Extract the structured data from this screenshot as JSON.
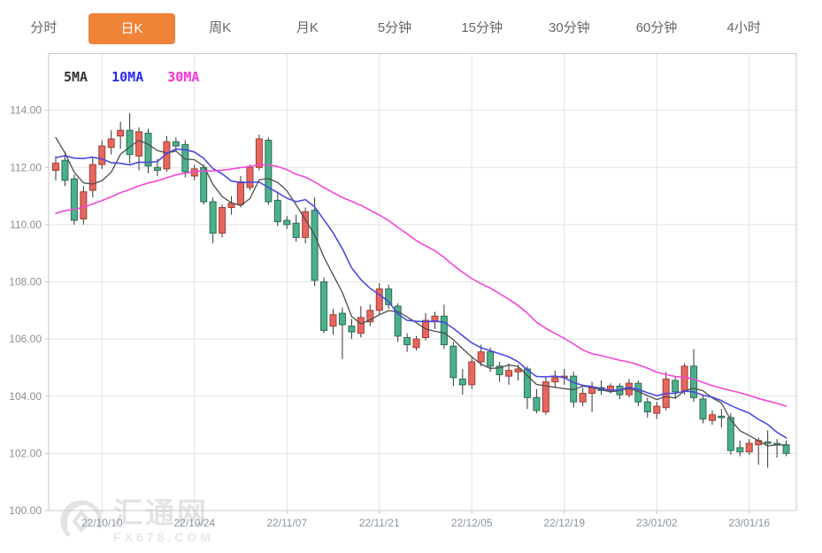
{
  "tabs": {
    "items": [
      {
        "label": "分时",
        "active": false
      },
      {
        "label": "日K",
        "active": true
      },
      {
        "label": "周K",
        "active": false
      },
      {
        "label": "月K",
        "active": false
      },
      {
        "label": "5分钟",
        "active": false
      },
      {
        "label": "15分钟",
        "active": false
      },
      {
        "label": "30分钟",
        "active": false
      },
      {
        "label": "60分钟",
        "active": false
      },
      {
        "label": "4小时",
        "active": false
      }
    ]
  },
  "legend": {
    "items": [
      {
        "label": "5MA",
        "color": "#333333"
      },
      {
        "label": "10MA",
        "color": "#2a2aee"
      },
      {
        "label": "30MA",
        "color": "#fb30d8"
      }
    ]
  },
  "watermark": {
    "title": "汇通网",
    "subtitle": "FX678.COM"
  },
  "colors": {
    "accent_orange": "#ef8338",
    "up_fill": "#e8665e",
    "up_stroke": "#9c4038",
    "down_fill": "#4bb18b",
    "down_stroke": "#2e6b52",
    "wick": "#333333",
    "ma5": "#4d4d4d",
    "ma10": "#4a4ae0",
    "ma30": "#f247d8",
    "grid": "#e3e3e3",
    "border": "#c9c9c9",
    "y_text": "#8e8e8e",
    "x_text": "#8b95a0",
    "watermark": "#e3e3e3"
  },
  "chart_data": {
    "type": "candlestick",
    "title": "",
    "ylim": [
      100,
      116
    ],
    "y_ticks": [
      114,
      112,
      110,
      108,
      106,
      104,
      102,
      100
    ],
    "y_tick_labels": [
      "114.00",
      "112.00",
      "110.00",
      "108.00",
      "106.00",
      "104.00",
      "102.00",
      "100.00"
    ],
    "x_axis_labels": [
      {
        "index": 5,
        "label": "22/10/10"
      },
      {
        "index": 15,
        "label": "22/10/24"
      },
      {
        "index": 25,
        "label": "22/11/07"
      },
      {
        "index": 35,
        "label": "22/11/21"
      },
      {
        "index": 45,
        "label": "22/12/05"
      },
      {
        "index": 55,
        "label": "22/12/19"
      },
      {
        "index": 65,
        "label": "23/01/02"
      },
      {
        "index": 75,
        "label": "23/01/16"
      }
    ],
    "ma_series": [
      {
        "name": "5MA",
        "window": 5,
        "color": "#4d4d4d",
        "width": 1.3
      },
      {
        "name": "10MA",
        "window": 10,
        "color": "#4a4ae0",
        "width": 1.6
      },
      {
        "name": "30MA",
        "window": 30,
        "color": "#f247d8",
        "width": 1.6
      }
    ],
    "ma_prehistory_closes": [
      108.6,
      108.8,
      108.9,
      108.8,
      109.0,
      109.2,
      109.0,
      109.1,
      109.3,
      109.1,
      109.6,
      109.7,
      109.8,
      110.0,
      110.3,
      110.1,
      109.8,
      109.6,
      109.7,
      109.9,
      110.9,
      111.0,
      111.3,
      111.6,
      113.4,
      114.3,
      113.5,
      113.0,
      112.3
    ],
    "candles": [
      [
        111.9,
        112.4,
        111.55,
        112.15
      ],
      [
        112.25,
        112.55,
        111.35,
        111.55
      ],
      [
        111.6,
        111.75,
        110.0,
        110.15
      ],
      [
        110.2,
        111.35,
        110.0,
        111.15
      ],
      [
        111.2,
        112.35,
        110.95,
        112.1
      ],
      [
        112.1,
        112.95,
        111.95,
        112.75
      ],
      [
        112.7,
        113.3,
        112.45,
        113.0
      ],
      [
        113.1,
        113.6,
        112.65,
        113.3
      ],
      [
        113.3,
        113.9,
        112.15,
        112.45
      ],
      [
        112.4,
        113.4,
        111.9,
        113.25
      ],
      [
        113.2,
        113.35,
        111.8,
        112.05
      ],
      [
        112.0,
        112.3,
        111.7,
        111.9
      ],
      [
        111.95,
        113.1,
        111.85,
        112.9
      ],
      [
        112.9,
        113.05,
        112.55,
        112.75
      ],
      [
        112.8,
        112.95,
        111.65,
        111.85
      ],
      [
        111.7,
        112.1,
        111.55,
        111.95
      ],
      [
        112.0,
        112.1,
        110.7,
        110.8
      ],
      [
        110.8,
        110.95,
        109.35,
        109.7
      ],
      [
        109.7,
        110.7,
        109.55,
        110.6
      ],
      [
        110.6,
        111.0,
        110.35,
        110.75
      ],
      [
        110.7,
        111.7,
        110.6,
        111.5
      ],
      [
        111.3,
        112.1,
        111.2,
        112.0
      ],
      [
        112.0,
        113.15,
        111.9,
        113.0
      ],
      [
        112.95,
        113.05,
        110.7,
        110.8
      ],
      [
        110.85,
        111.15,
        109.95,
        110.1
      ],
      [
        110.15,
        110.3,
        109.85,
        110.0
      ],
      [
        110.05,
        110.35,
        109.4,
        109.55
      ],
      [
        109.55,
        110.6,
        109.35,
        110.45
      ],
      [
        110.5,
        110.95,
        107.85,
        108.05
      ],
      [
        108.0,
        108.15,
        106.2,
        106.3
      ],
      [
        106.45,
        107.05,
        106.15,
        106.85
      ],
      [
        106.9,
        107.1,
        105.3,
        106.5
      ],
      [
        106.45,
        106.7,
        106.0,
        106.25
      ],
      [
        106.2,
        107.15,
        106.05,
        106.75
      ],
      [
        106.6,
        107.2,
        106.45,
        107.0
      ],
      [
        107.0,
        107.95,
        106.85,
        107.75
      ],
      [
        107.75,
        107.9,
        107.05,
        107.2
      ],
      [
        107.15,
        107.25,
        105.9,
        106.1
      ],
      [
        106.05,
        106.2,
        105.55,
        105.8
      ],
      [
        105.7,
        106.1,
        105.6,
        106.0
      ],
      [
        106.05,
        106.9,
        105.95,
        106.65
      ],
      [
        106.6,
        106.95,
        106.35,
        106.8
      ],
      [
        106.8,
        107.2,
        105.65,
        105.8
      ],
      [
        105.75,
        105.9,
        104.35,
        104.65
      ],
      [
        104.6,
        104.95,
        104.05,
        104.4
      ],
      [
        104.4,
        105.35,
        104.25,
        105.2
      ],
      [
        105.2,
        105.8,
        105.05,
        105.55
      ],
      [
        105.55,
        105.7,
        104.85,
        105.05
      ],
      [
        105.05,
        105.2,
        104.5,
        104.75
      ],
      [
        104.7,
        105.15,
        104.4,
        104.9
      ],
      [
        104.85,
        105.1,
        104.55,
        104.95
      ],
      [
        104.95,
        105.05,
        103.55,
        103.95
      ],
      [
        103.95,
        104.25,
        103.4,
        103.5
      ],
      [
        103.45,
        104.65,
        103.35,
        104.5
      ],
      [
        104.5,
        104.9,
        104.3,
        104.65
      ],
      [
        104.65,
        104.95,
        104.4,
        104.7
      ],
      [
        104.7,
        104.85,
        103.6,
        103.8
      ],
      [
        103.8,
        104.3,
        103.65,
        104.1
      ],
      [
        104.1,
        104.5,
        103.45,
        104.3
      ],
      [
        104.3,
        104.55,
        104.05,
        104.2
      ],
      [
        104.2,
        104.45,
        104.1,
        104.35
      ],
      [
        104.35,
        104.45,
        103.9,
        104.05
      ],
      [
        104.05,
        104.6,
        103.95,
        104.45
      ],
      [
        104.45,
        104.55,
        103.65,
        103.8
      ],
      [
        103.8,
        103.95,
        103.25,
        103.45
      ],
      [
        103.4,
        103.8,
        103.2,
        103.65
      ],
      [
        103.6,
        104.85,
        103.5,
        104.6
      ],
      [
        104.55,
        104.7,
        103.95,
        104.15
      ],
      [
        104.2,
        105.15,
        104.05,
        105.05
      ],
      [
        105.05,
        105.65,
        103.8,
        103.95
      ],
      [
        103.9,
        104.05,
        103.05,
        103.2
      ],
      [
        103.15,
        103.5,
        103.0,
        103.35
      ],
      [
        103.3,
        103.55,
        102.9,
        103.25
      ],
      [
        103.25,
        103.4,
        101.95,
        102.1
      ],
      [
        102.2,
        102.45,
        101.9,
        102.05
      ],
      [
        102.05,
        102.5,
        101.95,
        102.35
      ],
      [
        102.3,
        102.55,
        101.6,
        102.45
      ],
      [
        102.4,
        102.8,
        101.5,
        102.35
      ],
      [
        102.35,
        102.5,
        101.85,
        102.3
      ],
      [
        102.3,
        102.45,
        101.9,
        102.0
      ]
    ]
  }
}
